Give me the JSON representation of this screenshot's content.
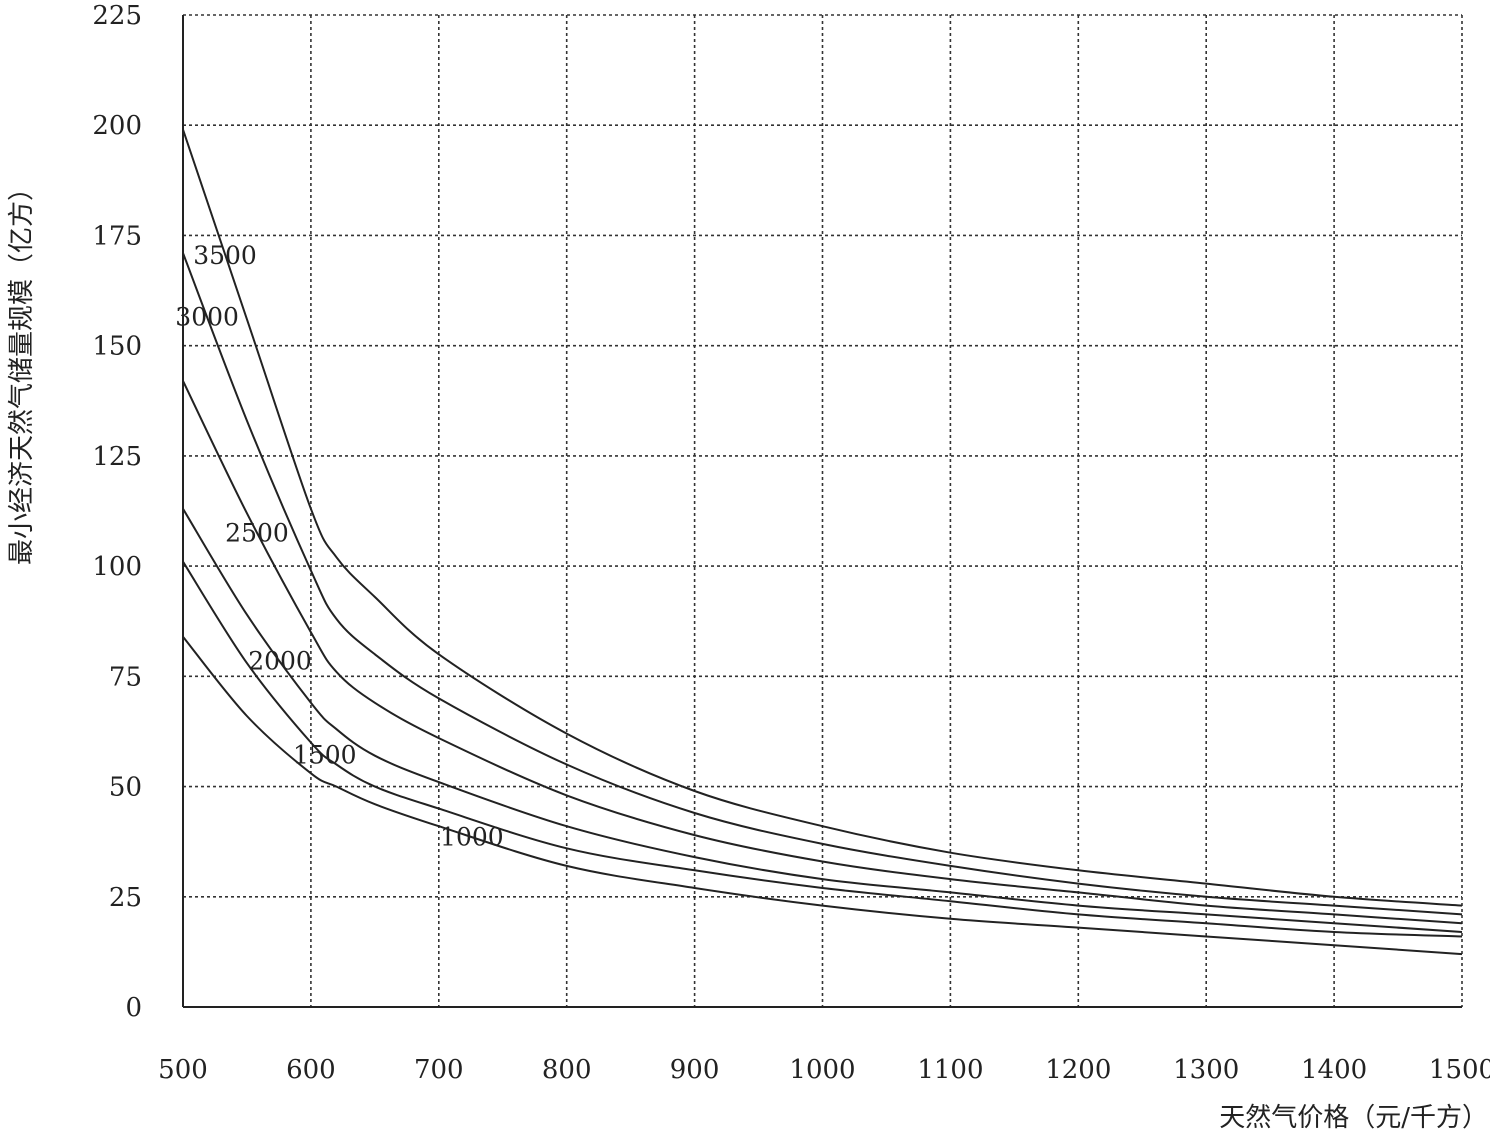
{
  "chart_data": {
    "type": "line",
    "xlabel": "天然气价格（元/千方）",
    "ylabel": "最小经济天然气储量规模（亿方）",
    "xlim": [
      500,
      1500
    ],
    "ylim": [
      0,
      225
    ],
    "xticks": [
      500,
      600,
      700,
      800,
      900,
      1000,
      1100,
      1200,
      1300,
      1400,
      1500
    ],
    "yticks": [
      0,
      25,
      50,
      75,
      100,
      125,
      150,
      175,
      200,
      225
    ],
    "grid": true,
    "series": [
      {
        "name": "3500",
        "x": [
          500,
          550,
          600,
          620,
          650,
          700,
          800,
          900,
          1000,
          1100,
          1200,
          1300,
          1400,
          1500
        ],
        "y": [
          199,
          156,
          113,
          102,
          93,
          80,
          62,
          49,
          41,
          35,
          31,
          28,
          25,
          23
        ]
      },
      {
        "name": "3000",
        "x": [
          500,
          550,
          600,
          620,
          650,
          700,
          800,
          900,
          1000,
          1100,
          1200,
          1300,
          1400,
          1500
        ],
        "y": [
          171,
          133,
          99,
          88,
          80,
          70,
          55,
          44,
          37,
          32,
          28,
          25,
          23,
          21
        ]
      },
      {
        "name": "2500",
        "x": [
          500,
          550,
          600,
          620,
          650,
          700,
          800,
          900,
          1000,
          1100,
          1200,
          1300,
          1400,
          1500
        ],
        "y": [
          142,
          112,
          85,
          76,
          69,
          61,
          48,
          39,
          33,
          29,
          26,
          23,
          21,
          19
        ]
      },
      {
        "name": "2000",
        "x": [
          500,
          550,
          600,
          620,
          650,
          700,
          800,
          900,
          1000,
          1100,
          1200,
          1300,
          1400,
          1500
        ],
        "y": [
          113,
          89,
          69,
          63,
          57,
          51,
          41,
          34,
          29,
          26,
          23,
          21,
          19,
          17
        ]
      },
      {
        "name": "1500",
        "x": [
          500,
          550,
          600,
          620,
          650,
          700,
          800,
          900,
          1000,
          1100,
          1200,
          1300,
          1400,
          1500
        ],
        "y": [
          101,
          78,
          60,
          55,
          50,
          45,
          36,
          31,
          27,
          24,
          21,
          19,
          17,
          16
        ]
      },
      {
        "name": "1000",
        "x": [
          500,
          550,
          600,
          620,
          650,
          700,
          800,
          900,
          1000,
          1100,
          1200,
          1300,
          1400,
          1500
        ],
        "y": [
          84,
          66,
          53,
          50,
          46,
          41,
          32,
          27,
          23,
          20,
          18,
          16,
          14,
          12
        ]
      }
    ]
  }
}
